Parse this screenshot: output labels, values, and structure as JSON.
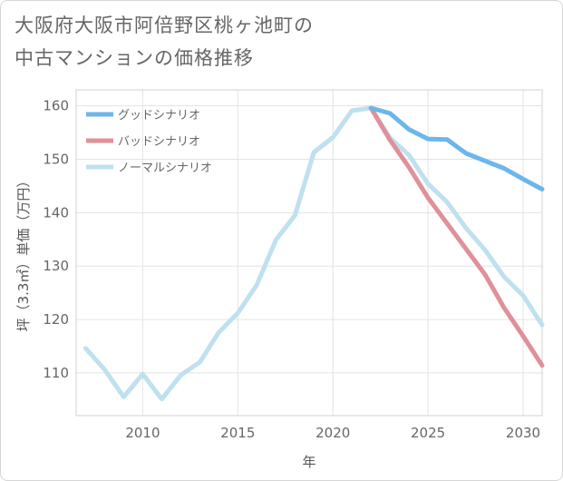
{
  "title_lines": [
    "大阪府大阪市阿倍野区桃ヶ池町の",
    "中古マンションの価格推移"
  ],
  "chart_data": {
    "type": "line",
    "title": "大阪府大阪市阿倍野区桃ヶ池町の中古マンションの価格推移",
    "xlabel": "年",
    "ylabel": "坪（3.3㎡）単価（万円）",
    "xlim": [
      2006.5,
      2031
    ],
    "ylim": [
      102,
      163
    ],
    "xticks": [
      2010,
      2015,
      2020,
      2025,
      2030
    ],
    "yticks": [
      110,
      120,
      130,
      140,
      150,
      160
    ],
    "grid": true,
    "legend_position": "top-left",
    "series": [
      {
        "name": "グッドシナリオ",
        "color": "#6cb6ea",
        "x": [
          2022,
          2023,
          2024,
          2025,
          2026,
          2027,
          2028,
          2029,
          2030,
          2031
        ],
        "y": [
          159.6,
          158.6,
          155.6,
          153.8,
          153.7,
          151.1,
          149.7,
          148.3,
          146.3,
          144.4
        ]
      },
      {
        "name": "バッドシナリオ",
        "color": "#e0909a",
        "x": [
          2022,
          2023,
          2024,
          2025,
          2026,
          2027,
          2028,
          2029,
          2030,
          2031
        ],
        "y": [
          159.6,
          153.6,
          148.5,
          142.8,
          138.0,
          133.2,
          128.4,
          122.2,
          116.9,
          111.4
        ]
      },
      {
        "name": "ノーマルシナリオ",
        "color": "#bfe0ef",
        "x": [
          2007,
          2008,
          2009,
          2010,
          2011,
          2012,
          2013,
          2014,
          2015,
          2016,
          2017,
          2018,
          2019,
          2020,
          2021,
          2022,
          2023,
          2024,
          2025,
          2026,
          2027,
          2028,
          2029,
          2030,
          2031
        ],
        "y": [
          114.6,
          110.6,
          105.5,
          109.8,
          105.1,
          109.6,
          112.0,
          117.6,
          121.2,
          126.5,
          134.9,
          139.5,
          151.3,
          154.1,
          159.1,
          159.6,
          154.0,
          150.8,
          145.4,
          142.0,
          137.1,
          133.0,
          128.0,
          124.5,
          119.0
        ]
      }
    ]
  }
}
